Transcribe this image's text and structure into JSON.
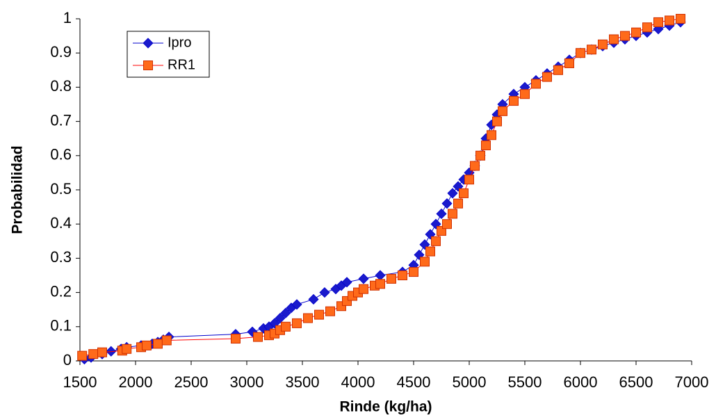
{
  "chart_data": {
    "type": "line",
    "xlabel": "Rinde (kg/ha)",
    "ylabel": "Probabilidad",
    "xlim": [
      1500,
      7000
    ],
    "xticks": [
      1500,
      2000,
      2500,
      3000,
      3500,
      4000,
      4500,
      5000,
      5500,
      6000,
      6500,
      7000
    ],
    "ylim": [
      0,
      1
    ],
    "yticks": [
      0,
      0.1,
      0.2,
      0.3,
      0.4,
      0.5,
      0.6,
      0.7,
      0.8,
      0.9,
      1
    ],
    "grid": false,
    "legend": "upper-left",
    "series": [
      {
        "name": "Ipro",
        "color": "#1a1acc",
        "line_color": "#0000cc",
        "marker": "diamond",
        "x": [
          1540,
          1600,
          1700,
          1780,
          1870,
          1920,
          2050,
          2150,
          2200,
          2250,
          2300,
          2900,
          3050,
          3150,
          3200,
          3250,
          3300,
          3350,
          3400,
          3450,
          3600,
          3700,
          3800,
          3850,
          3900,
          4050,
          4200,
          4400,
          4500,
          4550,
          4600,
          4650,
          4700,
          4750,
          4800,
          4850,
          4900,
          4950,
          5000,
          5050,
          5100,
          5150,
          5200,
          5250,
          5300,
          5400,
          5500,
          5600,
          5700,
          5800,
          5900,
          6000,
          6100,
          6200,
          6300,
          6400,
          6500,
          6600,
          6700,
          6800,
          6900
        ],
        "values": [
          0.005,
          0.01,
          0.02,
          0.028,
          0.035,
          0.04,
          0.045,
          0.05,
          0.055,
          0.062,
          0.07,
          0.078,
          0.085,
          0.095,
          0.1,
          0.11,
          0.125,
          0.14,
          0.155,
          0.165,
          0.18,
          0.2,
          0.21,
          0.22,
          0.23,
          0.24,
          0.25,
          0.26,
          0.28,
          0.31,
          0.34,
          0.37,
          0.4,
          0.43,
          0.46,
          0.49,
          0.51,
          0.53,
          0.55,
          0.57,
          0.6,
          0.65,
          0.69,
          0.72,
          0.75,
          0.78,
          0.8,
          0.82,
          0.84,
          0.86,
          0.88,
          0.9,
          0.91,
          0.92,
          0.93,
          0.94,
          0.95,
          0.96,
          0.97,
          0.98,
          0.99
        ]
      },
      {
        "name": "RR1",
        "color": "#ff6a1a",
        "line_color": "#ff0000",
        "marker": "square",
        "x": [
          1520,
          1620,
          1700,
          1880,
          1920,
          2050,
          2100,
          2200,
          2280,
          2900,
          3100,
          3200,
          3250,
          3300,
          3350,
          3450,
          3550,
          3650,
          3750,
          3850,
          3900,
          3950,
          4000,
          4050,
          4150,
          4200,
          4300,
          4400,
          4500,
          4600,
          4650,
          4700,
          4750,
          4800,
          4850,
          4900,
          4950,
          5000,
          5050,
          5100,
          5150,
          5200,
          5250,
          5300,
          5400,
          5500,
          5600,
          5700,
          5800,
          5900,
          6000,
          6100,
          6200,
          6300,
          6400,
          6500,
          6600,
          6700,
          6800,
          6900
        ],
        "values": [
          0.015,
          0.02,
          0.025,
          0.03,
          0.035,
          0.04,
          0.045,
          0.05,
          0.06,
          0.065,
          0.07,
          0.075,
          0.08,
          0.09,
          0.1,
          0.11,
          0.125,
          0.135,
          0.145,
          0.16,
          0.175,
          0.19,
          0.2,
          0.21,
          0.22,
          0.225,
          0.24,
          0.25,
          0.26,
          0.29,
          0.32,
          0.35,
          0.38,
          0.4,
          0.43,
          0.46,
          0.49,
          0.53,
          0.57,
          0.6,
          0.63,
          0.66,
          0.7,
          0.73,
          0.76,
          0.78,
          0.81,
          0.83,
          0.85,
          0.87,
          0.9,
          0.91,
          0.925,
          0.94,
          0.95,
          0.96,
          0.975,
          0.99,
          0.995,
          1.0
        ]
      }
    ]
  }
}
